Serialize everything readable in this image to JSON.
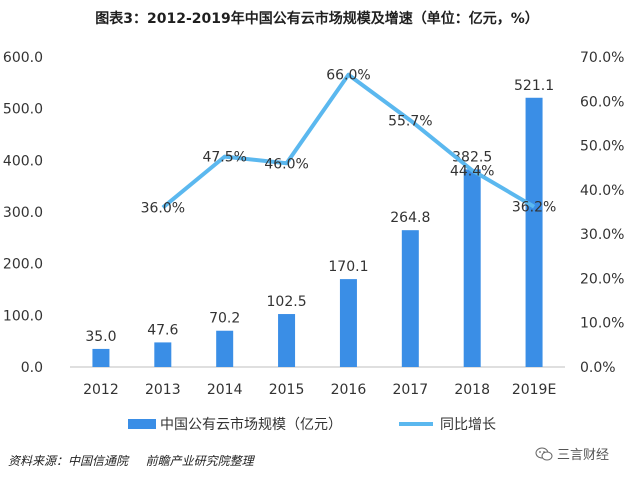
{
  "title": "图表3：2012-2019年中国公有云市场规模及增速（单位：亿元，%）",
  "footer": {
    "source_label": "资料来源：中国信通院",
    "publisher": "前瞻产业研究院整理"
  },
  "brand": "三言财经",
  "colors": {
    "bar": "#3a8ee6",
    "line": "#5bb8ef"
  },
  "chart_data": {
    "type": "bar",
    "categories": [
      "2012",
      "2013",
      "2014",
      "2015",
      "2016",
      "2017",
      "2018",
      "2019E"
    ],
    "series": [
      {
        "name": "中国公有云市场规模（亿元）",
        "type": "bar",
        "axis": "left",
        "values": [
          35.0,
          47.6,
          70.2,
          102.5,
          170.1,
          264.8,
          382.5,
          521.1
        ],
        "labels": [
          "35.0",
          "47.6",
          "70.2",
          "102.5",
          "170.1",
          "264.8",
          "382.5",
          "521.1"
        ]
      },
      {
        "name": "同比增长",
        "type": "line",
        "axis": "right",
        "values": [
          null,
          36.0,
          47.5,
          46.0,
          66.0,
          55.7,
          44.4,
          36.2
        ],
        "labels": [
          "",
          "36.0%",
          "47.5%",
          "46.0%",
          "66.0%",
          "55.7%",
          "44.4%",
          "36.2%"
        ]
      }
    ],
    "y_left": {
      "lim": [
        0,
        600
      ],
      "ticks": [
        "0.0",
        "100.0",
        "200.0",
        "300.0",
        "400.0",
        "500.0",
        "600.0"
      ]
    },
    "y_right": {
      "lim": [
        0,
        70
      ],
      "ticks": [
        "0.0%",
        "10.0%",
        "20.0%",
        "30.0%",
        "40.0%",
        "50.0%",
        "60.0%",
        "70.0%"
      ]
    },
    "grid": false,
    "legend_position": "bottom"
  }
}
